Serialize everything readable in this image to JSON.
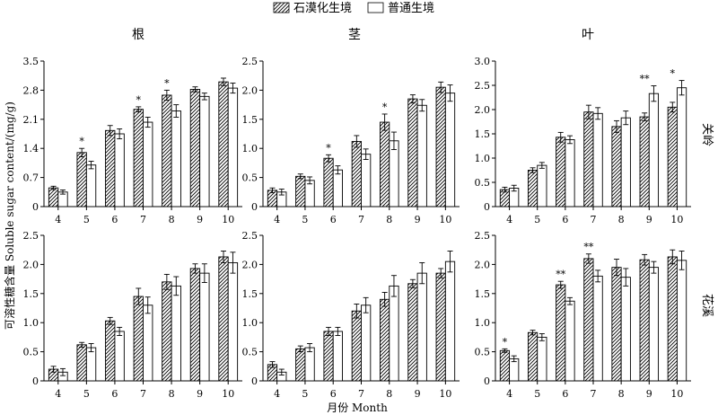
{
  "chart_data": {
    "type": "bar",
    "legend_position": "top-center",
    "legend": [
      {
        "label": "石漠化生境",
        "pattern": "hatched"
      },
      {
        "label": "普通生境",
        "pattern": "white"
      }
    ],
    "xlabel": "月份 Month",
    "ylabel": "可溶性糖含量 Soluble sugar content/(mg/g)",
    "categories": [
      "4",
      "5",
      "6",
      "7",
      "8",
      "9",
      "10"
    ],
    "columns": [
      "根",
      "茎",
      "叶"
    ],
    "rows": [
      "关岭",
      "花溪"
    ],
    "grid": false,
    "panels": [
      {
        "column": "根",
        "row": "关岭",
        "ylim": [
          0,
          3.5
        ],
        "yticks": [
          "0",
          "0.7",
          "1.4",
          "2.1",
          "2.8",
          "3.5"
        ],
        "series": [
          {
            "name": "石漠化生境",
            "values": [
              0.45,
              1.3,
              1.83,
              2.34,
              2.68,
              2.82,
              3.0
            ],
            "errors": [
              0.04,
              0.1,
              0.12,
              0.06,
              0.12,
              0.06,
              0.09
            ]
          },
          {
            "name": "普通生境",
            "values": [
              0.35,
              1.0,
              1.75,
              2.03,
              2.3,
              2.65,
              2.85
            ],
            "errors": [
              0.05,
              0.09,
              0.12,
              0.12,
              0.15,
              0.08,
              0.12
            ]
          }
        ],
        "significance": [
          "",
          "*",
          "",
          "*",
          "*",
          "",
          ""
        ]
      },
      {
        "column": "茎",
        "row": "关岭",
        "ylim": [
          0,
          2.5
        ],
        "yticks": [
          "0",
          "0.5",
          "1.0",
          "1.5",
          "2.0",
          "2.5"
        ],
        "series": [
          {
            "name": "石漠化生境",
            "values": [
              0.28,
              0.52,
              0.83,
              1.12,
              1.45,
              1.85,
              2.05
            ],
            "errors": [
              0.04,
              0.04,
              0.06,
              0.1,
              0.14,
              0.07,
              0.09
            ]
          },
          {
            "name": "普通生境",
            "values": [
              0.25,
              0.45,
              0.63,
              0.9,
              1.13,
              1.74,
              1.95
            ],
            "errors": [
              0.05,
              0.06,
              0.07,
              0.09,
              0.15,
              0.1,
              0.14
            ]
          }
        ],
        "significance": [
          "",
          "",
          "*",
          "",
          "*",
          "",
          ""
        ]
      },
      {
        "column": "叶",
        "row": "关岭",
        "ylim": [
          0,
          3.0
        ],
        "yticks": [
          "0",
          "0.5",
          "1.0",
          "1.5",
          "2.0",
          "2.5",
          "3.0"
        ],
        "series": [
          {
            "name": "石漠化生境",
            "values": [
              0.35,
              0.75,
              1.43,
              1.95,
              1.65,
              1.85,
              2.05
            ],
            "errors": [
              0.05,
              0.05,
              0.1,
              0.14,
              0.12,
              0.08,
              0.1
            ]
          },
          {
            "name": "普通生境",
            "values": [
              0.38,
              0.85,
              1.38,
              1.92,
              1.83,
              2.33,
              2.45
            ],
            "errors": [
              0.06,
              0.06,
              0.08,
              0.12,
              0.14,
              0.16,
              0.15
            ]
          }
        ],
        "significance": [
          "",
          "",
          "",
          "",
          "",
          "**",
          "*"
        ]
      },
      {
        "column": "根",
        "row": "花溪",
        "ylim": [
          0,
          2.5
        ],
        "yticks": [
          "0",
          "0.5",
          "1.0",
          "1.5",
          "2.0",
          "2.5"
        ],
        "series": [
          {
            "name": "石漠化生境",
            "values": [
              0.2,
              0.62,
              1.03,
              1.45,
              1.7,
              1.93,
              2.13
            ],
            "errors": [
              0.05,
              0.04,
              0.06,
              0.14,
              0.13,
              0.08,
              0.1
            ]
          },
          {
            "name": "普通生境",
            "values": [
              0.15,
              0.57,
              0.85,
              1.3,
              1.63,
              1.85,
              2.03
            ],
            "errors": [
              0.06,
              0.07,
              0.07,
              0.14,
              0.16,
              0.16,
              0.18
            ]
          }
        ],
        "significance": [
          "",
          "",
          "",
          "",
          "",
          "",
          ""
        ]
      },
      {
        "column": "茎",
        "row": "花溪",
        "ylim": [
          0,
          2.5
        ],
        "yticks": [
          "0",
          "0.5",
          "1.0",
          "1.5",
          "2.0",
          "2.5"
        ],
        "series": [
          {
            "name": "石漠化生境",
            "values": [
              0.28,
              0.55,
              0.85,
              1.2,
              1.4,
              1.67,
              1.85
            ],
            "errors": [
              0.05,
              0.05,
              0.07,
              0.12,
              0.12,
              0.07,
              0.08
            ]
          },
          {
            "name": "普通生境",
            "values": [
              0.15,
              0.57,
              0.85,
              1.3,
              1.63,
              1.85,
              2.05
            ],
            "errors": [
              0.05,
              0.07,
              0.07,
              0.13,
              0.18,
              0.18,
              0.18
            ]
          }
        ],
        "significance": [
          "",
          "",
          "",
          "",
          "",
          "",
          ""
        ]
      },
      {
        "column": "叶",
        "row": "花溪",
        "ylim": [
          0,
          2.5
        ],
        "yticks": [
          "0",
          "0.5",
          "1.0",
          "1.5",
          "2.0",
          "2.5"
        ],
        "series": [
          {
            "name": "石漠化生境",
            "values": [
              0.52,
              0.83,
              1.65,
              2.1,
              1.95,
              2.08,
              2.13
            ],
            "errors": [
              0.03,
              0.04,
              0.06,
              0.08,
              0.14,
              0.09,
              0.12
            ]
          },
          {
            "name": "普通生境",
            "values": [
              0.38,
              0.75,
              1.37,
              1.8,
              1.78,
              1.95,
              2.07
            ],
            "errors": [
              0.05,
              0.06,
              0.06,
              0.1,
              0.15,
              0.1,
              0.16
            ]
          }
        ],
        "significance": [
          "*",
          "",
          "**",
          "**",
          "",
          "",
          ""
        ]
      }
    ]
  }
}
